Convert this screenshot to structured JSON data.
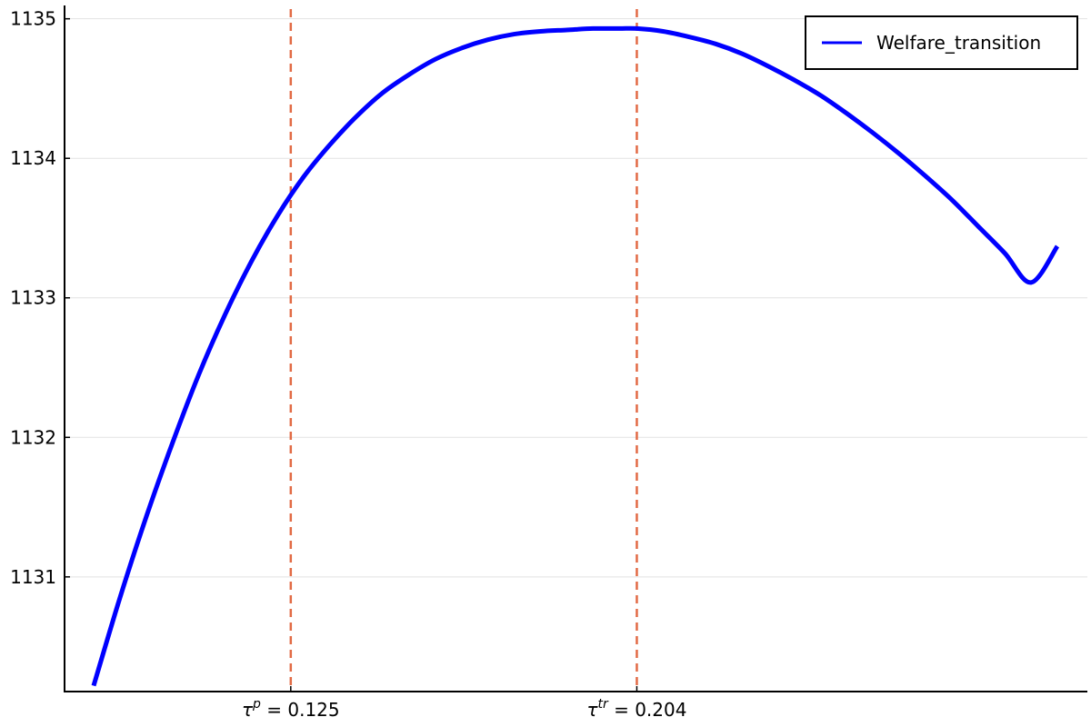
{
  "chart_data": {
    "type": "line",
    "title": "",
    "xlabel": "",
    "ylabel": "",
    "xlim": [
      0.08,
      0.31
    ],
    "ylim": [
      1130.1,
      1135.05
    ],
    "grid": {
      "x": false,
      "y": true
    },
    "legend_position": "top-right",
    "y_ticks": [
      1131,
      1132,
      1133,
      1134,
      1135
    ],
    "y_tick_labels": [
      "1131",
      "1132",
      "1133",
      "1134",
      "1135"
    ],
    "vlines": [
      {
        "x": 0.125,
        "base": "τ",
        "sup": "p",
        "rest": " = 0.125",
        "color": "#e26b45"
      },
      {
        "x": 0.204,
        "base": "τ",
        "sup": "tr",
        "rest": " = 0.204",
        "color": "#e26b45"
      }
    ],
    "series": [
      {
        "name": "Welfare_transition",
        "color": "#0000ff",
        "x": [
          0.08,
          0.086,
          0.092,
          0.098,
          0.104,
          0.11,
          0.116,
          0.122,
          0.128,
          0.134,
          0.14,
          0.146,
          0.152,
          0.158,
          0.164,
          0.17,
          0.176,
          0.182,
          0.188,
          0.194,
          0.2,
          0.204,
          0.21,
          0.216,
          0.222,
          0.228,
          0.234,
          0.24,
          0.246,
          0.252,
          0.258,
          0.264,
          0.27,
          0.276,
          0.282,
          0.288,
          0.294,
          0.3
        ],
        "y": [
          1130.22,
          1130.85,
          1131.43,
          1131.96,
          1132.45,
          1132.88,
          1133.26,
          1133.59,
          1133.87,
          1134.1,
          1134.3,
          1134.47,
          1134.6,
          1134.71,
          1134.79,
          1134.85,
          1134.89,
          1134.91,
          1134.92,
          1134.93,
          1134.93,
          1134.93,
          1134.91,
          1134.87,
          1134.82,
          1134.75,
          1134.66,
          1134.56,
          1134.45,
          1134.32,
          1134.18,
          1134.03,
          1133.87,
          1133.7,
          1133.51,
          1133.32,
          1133.11,
          1133.37
        ]
      }
    ]
  }
}
